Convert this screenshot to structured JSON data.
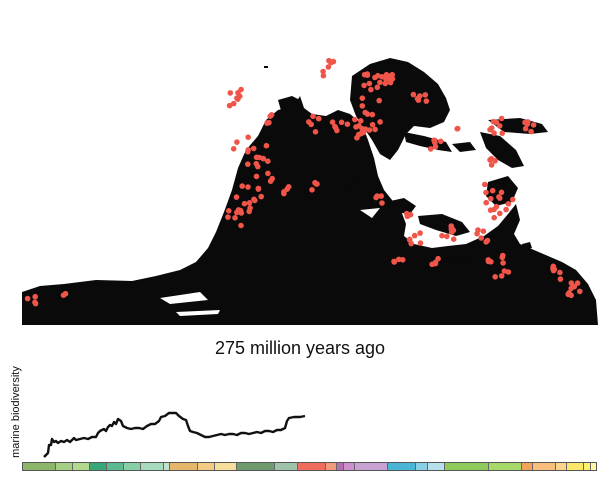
{
  "caption": "275 million years ago",
  "chart": {
    "ylabel": "marine biodiversity",
    "line_color": "#111111",
    "time_progress": 0.49
  },
  "map": {
    "land_color": "#0a0a0a",
    "occurrence_color": "#f0554a"
  },
  "timescale": [
    {
      "color": "#8db66a",
      "w": 6
    },
    {
      "color": "#a6cf86",
      "w": 3
    },
    {
      "color": "#b3d98d",
      "w": 3
    },
    {
      "color": "#39a879",
      "w": 3
    },
    {
      "color": "#5cb991",
      "w": 3
    },
    {
      "color": "#86cfa7",
      "w": 3
    },
    {
      "color": "#a8dbbd",
      "w": 4
    },
    {
      "color": "#bfe3cf",
      "w": 1
    },
    {
      "color": "#e6b66a",
      "w": 5
    },
    {
      "color": "#f2cc84",
      "w": 3
    },
    {
      "color": "#f6df9c",
      "w": 4
    },
    {
      "color": "#6e9a6d",
      "w": 7
    },
    {
      "color": "#9ec3aa",
      "w": 4
    },
    {
      "color": "#ee6d5c",
      "w": 5
    },
    {
      "color": "#f29a80",
      "w": 2
    },
    {
      "color": "#b270b0",
      "w": 1
    },
    {
      "color": "#cf8fcc",
      "w": 2
    },
    {
      "color": "#c9a2d4",
      "w": 6
    },
    {
      "color": "#4ab5d5",
      "w": 5
    },
    {
      "color": "#8ad0e4",
      "w": 2
    },
    {
      "color": "#b6e1ec",
      "w": 3
    },
    {
      "color": "#8fcb5c",
      "w": 8
    },
    {
      "color": "#a6d86a",
      "w": 6
    },
    {
      "color": "#f0a45a",
      "w": 2
    },
    {
      "color": "#f7be7e",
      "w": 4
    },
    {
      "color": "#fbd48e",
      "w": 2
    },
    {
      "color": "#fbe86a",
      "w": 3
    },
    {
      "color": "#fdf06a",
      "w": 1
    },
    {
      "color": "#fff6a6",
      "w": 1
    }
  ]
}
